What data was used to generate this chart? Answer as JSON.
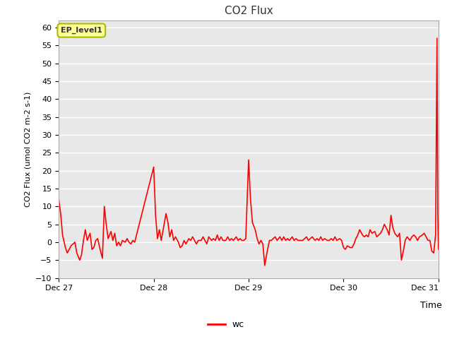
{
  "title": "CO2 Flux",
  "xlabel": "Time",
  "ylabel": "CO2 Flux (umol CO2 m-2 s-1)",
  "ylim": [
    -10,
    62
  ],
  "yticks": [
    -10,
    -5,
    0,
    5,
    10,
    15,
    20,
    25,
    30,
    35,
    40,
    45,
    50,
    55,
    60
  ],
  "line_color": "#FF0000",
  "line_width": 1.2,
  "bg_color": "#E8E8E8",
  "fig_bg_color": "#FFFFFF",
  "grid_color": "#FFFFFF",
  "legend_label": "wc",
  "annotation_text": "EP_level1",
  "annotation_bg": "#FFFF99",
  "annotation_border": "#AABB00",
  "x_start_days": 0,
  "x_end_days": 4.0,
  "x_tick_positions": [
    0,
    1,
    2,
    3,
    4
  ],
  "x_tick_labels": [
    "Dec 27",
    "Dec 28",
    "Dec 29",
    "Dec 30",
    "Dec 31"
  ],
  "data_x": [
    0.0,
    0.02,
    0.04,
    0.07,
    0.09,
    0.11,
    0.13,
    0.15,
    0.17,
    0.19,
    0.22,
    0.24,
    0.26,
    0.28,
    0.3,
    0.33,
    0.35,
    0.37,
    0.39,
    0.41,
    0.44,
    0.46,
    0.48,
    0.5,
    0.52,
    0.55,
    0.57,
    0.59,
    0.61,
    0.63,
    0.65,
    0.67,
    0.7,
    0.72,
    0.74,
    0.76,
    0.78,
    0.8,
    1.0,
    1.02,
    1.04,
    1.06,
    1.08,
    1.1,
    1.13,
    1.15,
    1.17,
    1.19,
    1.21,
    1.23,
    1.26,
    1.28,
    1.3,
    1.32,
    1.34,
    1.37,
    1.39,
    1.41,
    1.43,
    1.45,
    1.47,
    1.5,
    1.52,
    1.54,
    1.56,
    1.58,
    1.61,
    1.63,
    1.65,
    1.67,
    1.69,
    1.71,
    1.73,
    1.76,
    1.78,
    1.8,
    1.82,
    1.84,
    1.87,
    1.89,
    1.91,
    1.93,
    1.95,
    1.97,
    2.0,
    2.02,
    2.04,
    2.07,
    2.09,
    2.11,
    2.13,
    2.15,
    2.17,
    2.2,
    2.22,
    2.24,
    2.26,
    2.28,
    2.3,
    2.33,
    2.35,
    2.37,
    2.39,
    2.41,
    2.43,
    2.46,
    2.48,
    2.5,
    2.52,
    2.54,
    2.57,
    2.59,
    2.61,
    2.63,
    2.65,
    2.67,
    2.7,
    2.72,
    2.74,
    2.76,
    2.78,
    2.8,
    2.83,
    2.85,
    2.87,
    2.89,
    2.91,
    2.93,
    2.96,
    2.98,
    3.0,
    3.02,
    3.04,
    3.07,
    3.09,
    3.11,
    3.13,
    3.15,
    3.17,
    3.2,
    3.22,
    3.24,
    3.26,
    3.28,
    3.3,
    3.33,
    3.35,
    3.37,
    3.39,
    3.41,
    3.43,
    3.46,
    3.48,
    3.5,
    3.52,
    3.54,
    3.57,
    3.59,
    3.61,
    3.63,
    3.65,
    3.67,
    3.7,
    3.72,
    3.74,
    3.76,
    3.78,
    3.8,
    3.83,
    3.85,
    3.87,
    3.89,
    3.91,
    3.93,
    3.95,
    3.97,
    3.985,
    3.993,
    4.0
  ],
  "data_y": [
    12.0,
    8.0,
    2.0,
    -1.5,
    -3.0,
    -2.0,
    -1.0,
    -0.5,
    0.0,
    -3.0,
    -5.0,
    -3.5,
    0.5,
    3.5,
    0.5,
    2.5,
    -2.0,
    -1.5,
    0.5,
    1.0,
    -2.5,
    -4.5,
    10.0,
    5.0,
    1.0,
    3.0,
    0.5,
    2.5,
    -1.0,
    0.0,
    -1.0,
    0.5,
    0.0,
    1.0,
    0.0,
    -0.5,
    0.5,
    0.0,
    21.0,
    7.5,
    1.0,
    3.5,
    0.5,
    3.5,
    8.0,
    5.5,
    1.5,
    3.5,
    0.5,
    1.5,
    0.0,
    -1.5,
    -1.0,
    0.5,
    -0.5,
    1.0,
    0.5,
    1.5,
    0.5,
    -0.5,
    0.5,
    0.5,
    1.5,
    0.5,
    -0.5,
    1.5,
    0.5,
    1.0,
    0.5,
    2.0,
    0.5,
    1.5,
    0.5,
    0.5,
    1.5,
    0.5,
    1.0,
    0.5,
    1.5,
    0.5,
    1.0,
    0.5,
    0.5,
    1.0,
    23.0,
    12.0,
    5.5,
    3.5,
    1.0,
    -0.5,
    0.5,
    -0.5,
    -6.5,
    -2.0,
    0.5,
    0.5,
    1.0,
    1.5,
    0.5,
    1.5,
    0.5,
    1.5,
    0.5,
    1.0,
    0.5,
    1.5,
    0.5,
    1.0,
    0.5,
    0.5,
    0.5,
    1.0,
    1.5,
    0.5,
    1.0,
    1.5,
    0.5,
    1.0,
    0.5,
    1.5,
    0.5,
    1.0,
    0.5,
    0.5,
    1.0,
    0.5,
    1.5,
    0.5,
    1.0,
    0.5,
    -1.5,
    -2.0,
    -1.0,
    -1.5,
    -1.5,
    -0.5,
    1.0,
    2.0,
    3.5,
    2.0,
    1.5,
    2.0,
    1.5,
    3.5,
    2.5,
    3.0,
    1.5,
    2.0,
    2.5,
    3.5,
    5.0,
    3.5,
    2.0,
    7.5,
    4.0,
    2.5,
    1.5,
    2.5,
    -5.0,
    -2.5,
    0.5,
    1.5,
    0.5,
    1.5,
    2.0,
    1.5,
    0.5,
    1.5,
    2.0,
    2.5,
    1.5,
    0.5,
    0.5,
    -2.5,
    -3.0,
    2.0,
    57.0,
    8.0,
    -2.0
  ]
}
